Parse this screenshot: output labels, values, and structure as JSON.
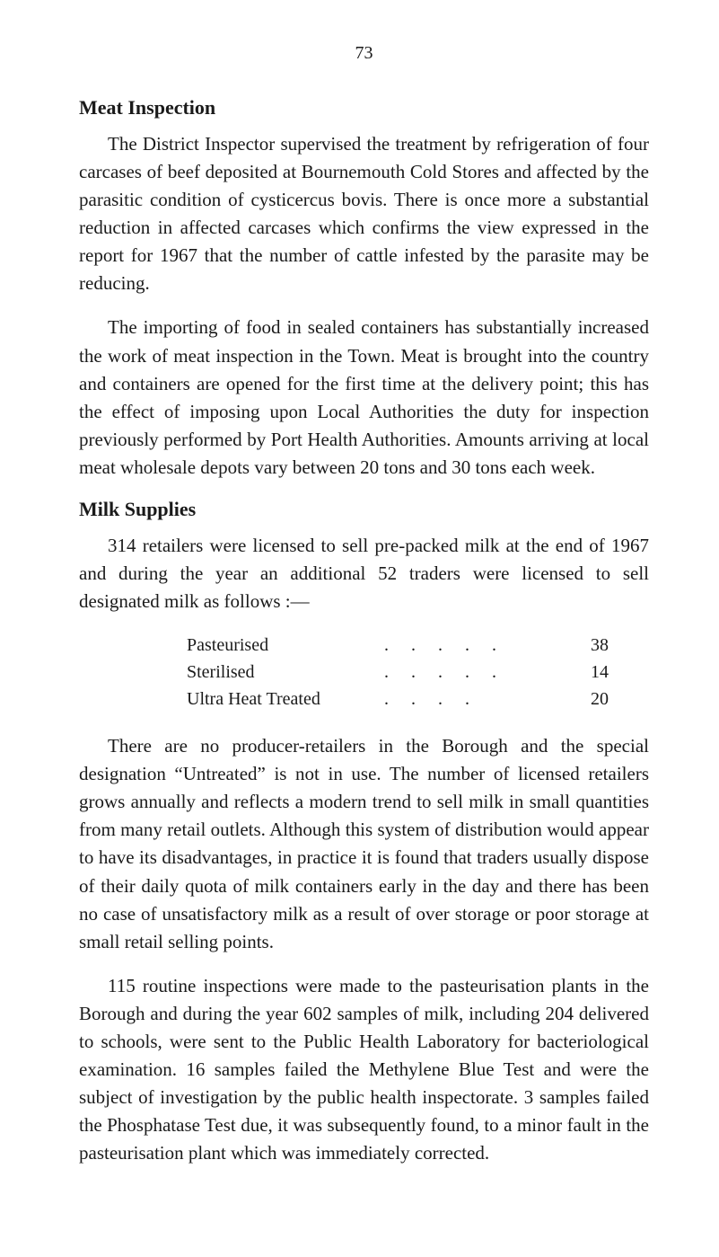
{
  "page_number": "73",
  "sections": {
    "meat_inspection": {
      "heading": "Meat Inspection",
      "paragraphs": [
        "The District Inspector supervised the treatment by refrigeration of four carcases of beef deposited at Bournemouth Cold Stores and affected by the parasitic condition of cysticercus bovis. There is once more a substantial reduction in affected carcases which confirms the view expressed in the report for 1967 that the number of cattle infested by the parasite may be reducing.",
        "The importing of food in sealed containers has substantially increased the work of meat inspection in the Town. Meat is brought into the country and containers are opened for the first time at the delivery point; this has the effect of imposing upon Local Authorities the duty for inspection previously performed by Port Health Authorities. Amounts arriving at local meat wholesale depots vary between 20 tons and 30 tons each week."
      ]
    },
    "milk_supplies": {
      "heading": "Milk Supplies",
      "intro": "314 retailers were licensed to sell pre-packed milk at the end of 1967 and during the year an additional 52 traders were licensed to sell designated milk as follows :—",
      "table": {
        "rows": [
          {
            "label": "Pasteurised",
            "value": "38"
          },
          {
            "label": "Sterilised",
            "value": "14"
          },
          {
            "label": "Ultra Heat Treated",
            "value": "20"
          }
        ]
      },
      "paragraphs": [
        "There are no producer-retailers in the Borough and the special designation “Untreated” is not in use. The number of licensed retailers grows annually and reflects a modern trend to sell milk in small quantities from many retail outlets. Although this system of distribution would appear to have its disadvantages, in practice it is found that traders usually dispose of their daily quota of milk containers early in the day and there has been no case of unsatisfactory milk as a result of over storage or poor storage at small retail selling points.",
        "115 routine inspections were made to the pasteurisation plants in the Borough and during the year 602 samples of milk, including 204 delivered to schools, were sent to the Public Health Laboratory for bacteriological examination. 16 samples failed the Methylene Blue Test and were the subject of investigation by the public health inspectorate. 3 samples failed the Phosphatase Test due, it was subsequently found, to a minor fault in the pasteurisation plant which was immediately corrected."
      ]
    }
  }
}
